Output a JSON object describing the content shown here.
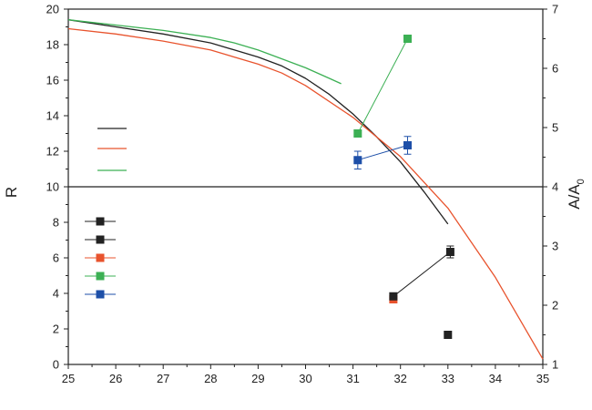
{
  "chart_data": {
    "type": "line",
    "title": "",
    "xlim": [
      25,
      35
    ],
    "xticks": [
      "25",
      "26",
      "27",
      "28",
      "29",
      "30",
      "31",
      "32",
      "33",
      "34",
      "35"
    ],
    "ylabel_left": "R",
    "ylim_left": [
      0,
      20
    ],
    "yticks_left": [
      "0",
      "2",
      "4",
      "6",
      "8",
      "10",
      "12",
      "14",
      "16",
      "18",
      "20"
    ],
    "ylabel_right": {
      "main": "A/A",
      "subscript": "0"
    },
    "ylim_right": [
      1,
      7
    ],
    "yticks_right": [
      "1",
      "2",
      "3",
      "4",
      "5",
      "6",
      "7"
    ],
    "reference_line": {
      "y_right": 4,
      "color": "#222222"
    },
    "series_lines": [
      {
        "color": "#222222",
        "axis": "left",
        "points": [
          [
            25,
            19.4
          ],
          [
            26,
            19.0
          ],
          [
            27,
            18.6
          ],
          [
            28,
            18.1
          ],
          [
            29,
            17.3
          ],
          [
            29.5,
            16.8
          ],
          [
            30,
            16.1
          ],
          [
            30.5,
            15.2
          ],
          [
            31,
            14.1
          ],
          [
            31.5,
            12.8
          ],
          [
            32,
            11.4
          ],
          [
            32.5,
            9.7
          ],
          [
            33,
            7.9
          ]
        ]
      },
      {
        "color": "#e8532d",
        "axis": "left",
        "points": [
          [
            25,
            18.9
          ],
          [
            26,
            18.6
          ],
          [
            27,
            18.2
          ],
          [
            28,
            17.7
          ],
          [
            29,
            16.9
          ],
          [
            29.5,
            16.4
          ],
          [
            30,
            15.7
          ],
          [
            31,
            13.9
          ],
          [
            32,
            11.7
          ],
          [
            33,
            8.8
          ],
          [
            34,
            4.9
          ],
          [
            34.5,
            2.6
          ],
          [
            35,
            0.3
          ]
        ]
      },
      {
        "color": "#3cb054",
        "axis": "left",
        "points": [
          [
            25,
            19.4
          ],
          [
            26,
            19.1
          ],
          [
            27,
            18.8
          ],
          [
            28,
            18.4
          ],
          [
            28.5,
            18.1
          ],
          [
            29,
            17.7
          ],
          [
            29.5,
            17.2
          ],
          [
            30,
            16.7
          ],
          [
            30.5,
            16.1
          ],
          [
            30.75,
            15.8
          ]
        ]
      }
    ],
    "series_points": [
      {
        "color": "#3cb054",
        "connected": true,
        "axis": "right",
        "points": [
          [
            31.1,
            4.9,
            0.06
          ],
          [
            32.15,
            6.5,
            0.06
          ]
        ]
      },
      {
        "color": "#1d4fa8",
        "connected": true,
        "axis": "right",
        "points": [
          [
            31.1,
            4.45,
            0.15
          ],
          [
            32.15,
            4.7,
            0.15
          ]
        ]
      },
      {
        "color": "#e8532d",
        "connected": false,
        "axis": "right",
        "points": [
          [
            31.85,
            2.1,
            0.04
          ]
        ]
      },
      {
        "color": "#222222",
        "connected": true,
        "axis": "right",
        "points": [
          [
            31.85,
            2.15,
            0.04
          ],
          [
            33.05,
            2.9,
            0.1
          ]
        ]
      },
      {
        "color": "#222222",
        "connected": false,
        "axis": "right",
        "points": [
          [
            33.0,
            1.5,
            0
          ]
        ]
      }
    ],
    "legend": {
      "position": "left-center",
      "lines": [
        {
          "color": "#222222"
        },
        {
          "color": "#e8532d"
        },
        {
          "color": "#3cb054"
        }
      ],
      "markers": [
        {
          "color": "#222222"
        },
        {
          "color": "#222222"
        },
        {
          "color": "#e8532d"
        },
        {
          "color": "#3cb054"
        },
        {
          "color": "#1d4fa8"
        }
      ]
    }
  }
}
